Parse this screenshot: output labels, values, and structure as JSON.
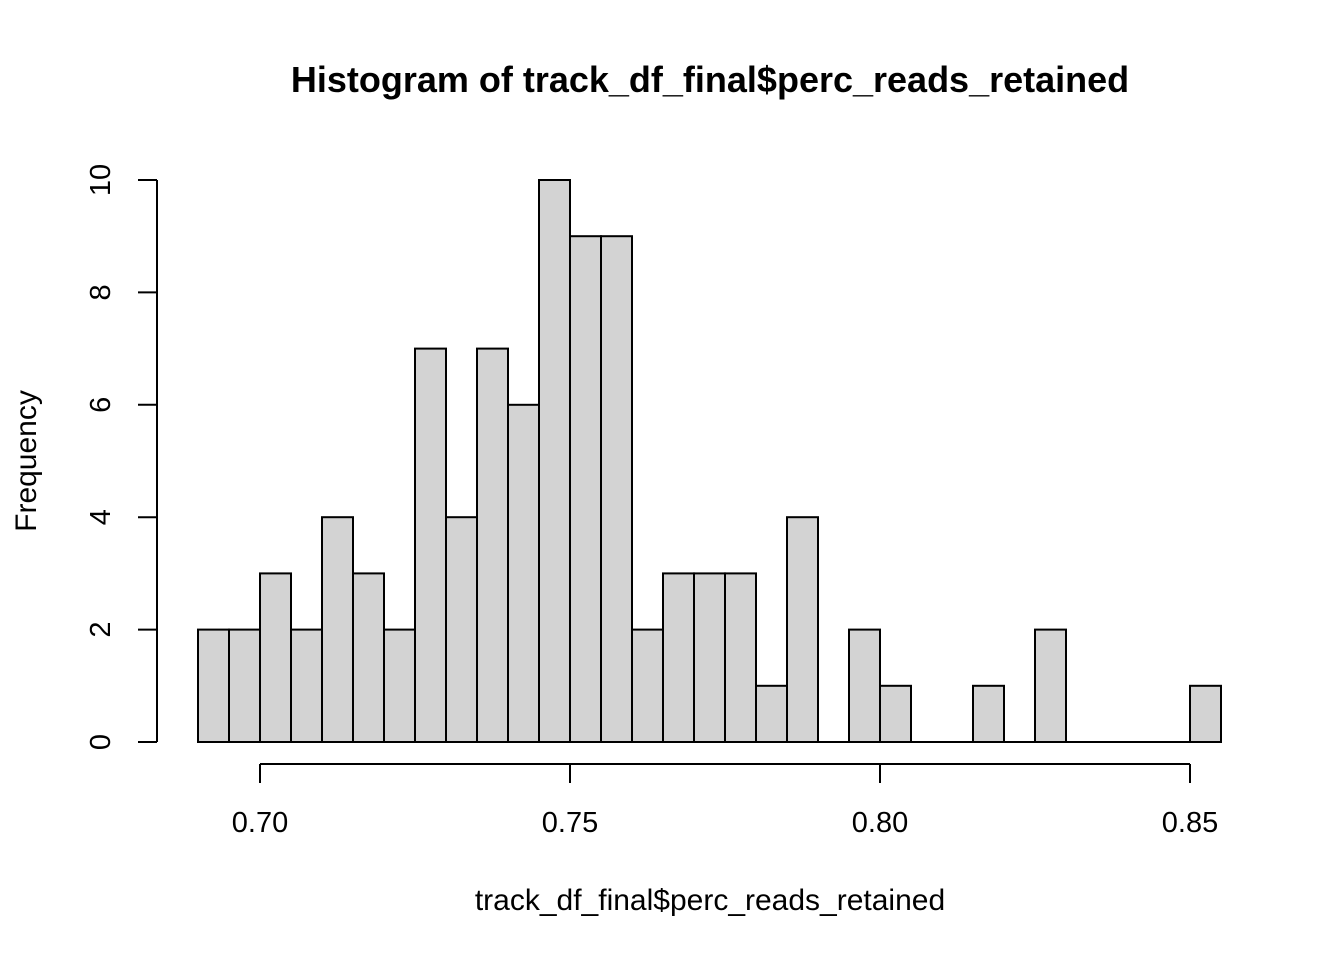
{
  "chart_data": {
    "type": "bar",
    "title": "Histogram of track_df_final$perc_reads_retained",
    "xlabel": "track_df_final$perc_reads_retained",
    "ylabel": "Frequency",
    "bin_start": 0.69,
    "bin_width": 0.005,
    "values": [
      2,
      2,
      3,
      2,
      4,
      3,
      2,
      7,
      4,
      7,
      6,
      10,
      9,
      9,
      2,
      3,
      3,
      3,
      1,
      4,
      0,
      2,
      1,
      0,
      0,
      1,
      0,
      2,
      0,
      0,
      0,
      0,
      1
    ],
    "xlim": [
      0.69,
      0.855
    ],
    "ylim": [
      0,
      10
    ],
    "x_ticks": [
      0.7,
      0.75,
      0.8,
      0.85
    ],
    "x_tick_labels": [
      "0.70",
      "0.75",
      "0.80",
      "0.85"
    ],
    "y_ticks": [
      0,
      2,
      4,
      6,
      8,
      10
    ],
    "y_tick_labels": [
      "0",
      "2",
      "4",
      "6",
      "8",
      "10"
    ],
    "bar_fill": "#d3d3d3",
    "bar_stroke": "#000000",
    "grid": false
  }
}
